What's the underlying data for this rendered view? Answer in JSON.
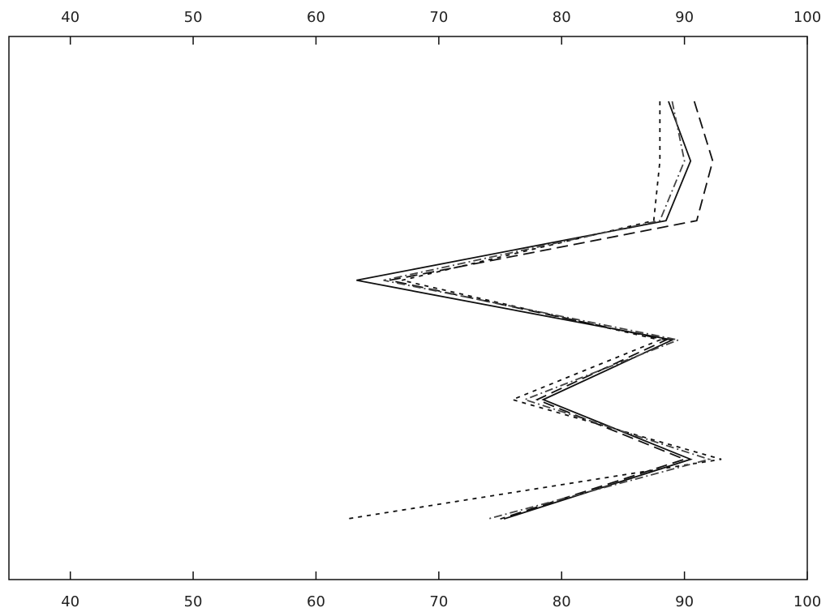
{
  "chart_data": {
    "type": "line",
    "orientation": "horizontal",
    "xlim": [
      35,
      100
    ],
    "xticks": [
      40,
      50,
      60,
      70,
      80,
      90,
      100
    ],
    "grid": false,
    "series": [
      {
        "color": "#111111",
        "dash": "none",
        "values": [
          88.7,
          90.5,
          88.5,
          63.3,
          89,
          78.5,
          90.5,
          75.3
        ]
      },
      {
        "color": "#111111",
        "dash": "14,7",
        "values": [
          90.8,
          92.3,
          91,
          66,
          88.5,
          78,
          90,
          75
        ]
      },
      {
        "color": "#111111",
        "dash": "5,6",
        "values": [
          88,
          88,
          87.5,
          67,
          88,
          76,
          93,
          62.5
        ]
      },
      {
        "color": "#444444",
        "dash": "10,4,2,4",
        "values": [
          89,
          90,
          88,
          65.5,
          89.5,
          77,
          92,
          74
        ]
      }
    ]
  }
}
